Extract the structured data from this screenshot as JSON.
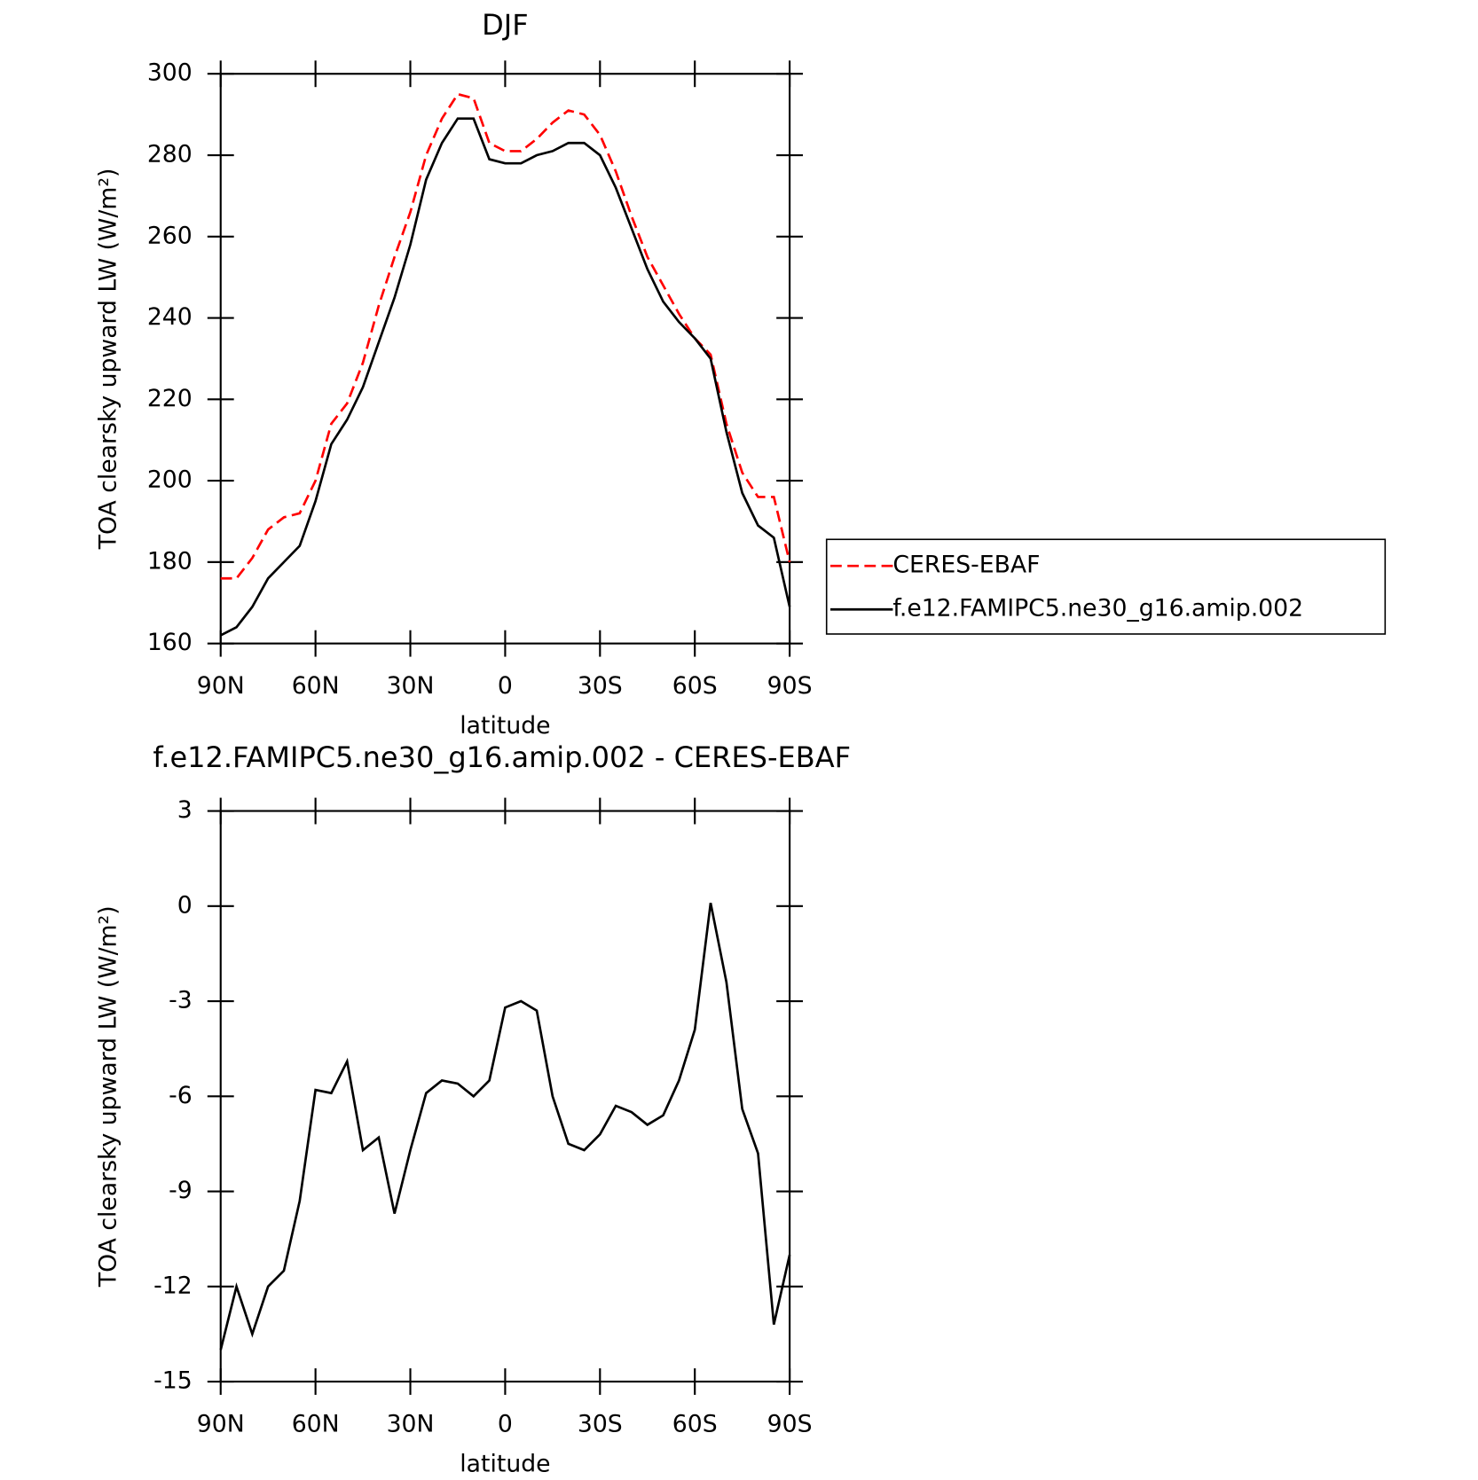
{
  "chart_data": [
    {
      "type": "line",
      "title": "DJF",
      "xlabel": "latitude",
      "ylabel": "TOA clearsky upward LW (W/m²)",
      "x": [
        90,
        85,
        80,
        75,
        70,
        65,
        60,
        55,
        50,
        45,
        40,
        35,
        30,
        25,
        20,
        15,
        10,
        5,
        0,
        -5,
        -10,
        -15,
        -20,
        -25,
        -30,
        -35,
        -40,
        -45,
        -50,
        -55,
        -60,
        -65,
        -70,
        -75,
        -80,
        -85,
        -90
      ],
      "xlim": [
        90,
        -90
      ],
      "xticks": [
        {
          "value": 90,
          "label": "90N"
        },
        {
          "value": 60,
          "label": "60N"
        },
        {
          "value": 30,
          "label": "30N"
        },
        0,
        {
          "value": -30,
          "label": "30S"
        },
        {
          "value": -60,
          "label": "60S"
        },
        {
          "value": -90,
          "label": "90S"
        }
      ],
      "ylim": [
        160,
        300
      ],
      "yticks": [
        160,
        180,
        200,
        220,
        240,
        260,
        280,
        300
      ],
      "legend": "outside-right",
      "series": [
        {
          "name": "CERES-EBAF",
          "color": "#ff0000",
          "dash": true,
          "values": [
            176,
            176,
            181,
            188,
            191,
            192,
            200,
            214,
            219,
            229,
            243,
            255,
            266,
            280,
            289,
            295,
            294,
            283,
            281,
            281,
            284,
            288,
            291,
            290,
            285,
            276,
            265,
            255,
            248,
            241,
            235,
            231,
            214,
            202,
            196,
            196,
            180
          ]
        },
        {
          "name": "f.e12.FAMIPC5.ne30_g16.amip.002",
          "color": "#000000",
          "dash": false,
          "values": [
            162,
            164,
            169,
            176,
            180,
            184,
            195,
            209,
            215,
            223,
            234,
            245,
            258,
            274,
            283,
            289,
            289,
            279,
            278,
            278,
            280,
            281,
            283,
            283,
            280,
            272,
            262,
            252,
            244,
            239,
            235,
            230,
            212,
            197,
            189,
            186,
            169
          ]
        }
      ]
    },
    {
      "type": "line",
      "title": "f.e12.FAMIPC5.ne30_g16.amip.002 - CERES-EBAF",
      "xlabel": "latitude",
      "ylabel": "TOA clearsky upward LW (W/m²)",
      "x": [
        90,
        85,
        80,
        75,
        70,
        65,
        60,
        55,
        50,
        45,
        40,
        35,
        30,
        25,
        20,
        15,
        10,
        5,
        0,
        -5,
        -10,
        -15,
        -20,
        -25,
        -30,
        -35,
        -40,
        -45,
        -50,
        -55,
        -60,
        -65,
        -70,
        -75,
        -80,
        -85,
        -90
      ],
      "xlim": [
        90,
        -90
      ],
      "xticks": [
        {
          "value": 90,
          "label": "90N"
        },
        {
          "value": 60,
          "label": "60N"
        },
        {
          "value": 30,
          "label": "30N"
        },
        0,
        {
          "value": -30,
          "label": "30S"
        },
        {
          "value": -60,
          "label": "60S"
        },
        {
          "value": -90,
          "label": "90S"
        }
      ],
      "ylim": [
        -15,
        3
      ],
      "yticks": [
        3,
        0,
        -3,
        -6,
        -9,
        -12,
        -15
      ],
      "series": [
        {
          "color": "#000000",
          "dash": false,
          "values": [
            -14,
            -12,
            -13.5,
            -12,
            -11.5,
            -9.3,
            -5.8,
            -5.9,
            -4.9,
            -7.7,
            -7.3,
            -9.7,
            -7.7,
            -5.9,
            -5.5,
            -5.6,
            -6.0,
            -5.5,
            -3.2,
            -3.0,
            -3.3,
            -6.0,
            -7.5,
            -7.7,
            -7.2,
            -6.3,
            -6.5,
            -6.9,
            -6.6,
            -5.5,
            -3.9,
            0.1,
            -2.4,
            -6.4,
            -7.8,
            -13.2,
            -11
          ]
        }
      ]
    }
  ]
}
